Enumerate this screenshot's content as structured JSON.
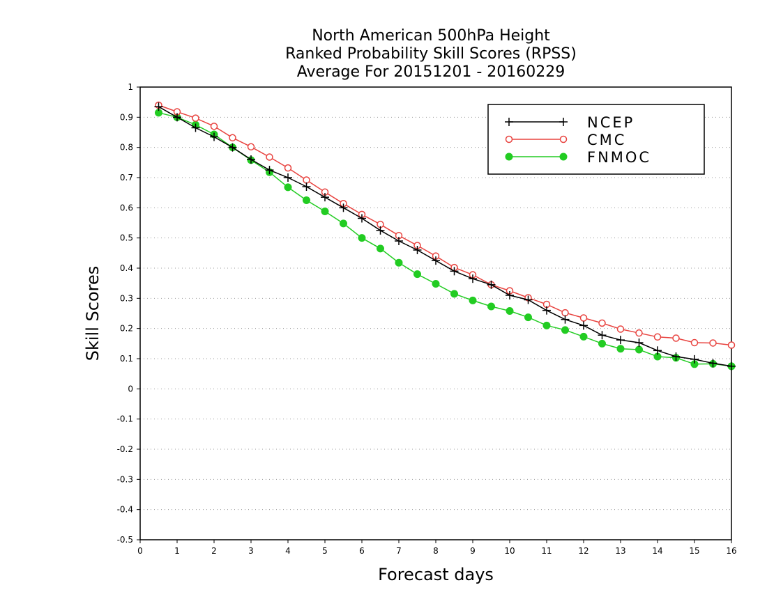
{
  "chart_data": {
    "type": "line",
    "title_lines": [
      "North American 500hPa Height",
      "Ranked Probability Skill Scores (RPSS)",
      "Average For 20151201 - 20160229"
    ],
    "xlabel": "Forecast days",
    "ylabel": "Skill Scores",
    "xlim": [
      0,
      16
    ],
    "ylim": [
      -0.5,
      1
    ],
    "xticks": [
      "0",
      "1",
      "2",
      "3",
      "4",
      "5",
      "6",
      "7",
      "8",
      "9",
      "10",
      "11",
      "12",
      "13",
      "14",
      "15",
      "16"
    ],
    "yticks": [
      "-0.5",
      "-0.4",
      "-0.3",
      "-0.2",
      "-0.1",
      "0",
      "0.1",
      "0.2",
      "0.3",
      "0.4",
      "0.5",
      "0.6",
      "0.7",
      "0.8",
      "0.9",
      "1"
    ],
    "grid": "horizontal dotted",
    "legend_position": "top-right",
    "x": [
      0.5,
      1,
      1.5,
      2,
      2.5,
      3,
      3.5,
      4,
      4.5,
      5,
      5.5,
      6,
      6.5,
      7,
      7.5,
      8,
      8.5,
      9,
      9.5,
      10,
      10.5,
      11,
      11.5,
      12,
      12.5,
      13,
      13.5,
      14,
      14.5,
      15,
      15.5,
      16
    ],
    "series": [
      {
        "name": "NCEP",
        "color": "#000000",
        "marker": "plus",
        "values": [
          0.935,
          0.9,
          0.865,
          0.835,
          0.8,
          0.76,
          0.725,
          0.7,
          0.67,
          0.635,
          0.6,
          0.565,
          0.525,
          0.49,
          0.46,
          0.425,
          0.39,
          0.365,
          0.345,
          0.31,
          0.295,
          0.26,
          0.23,
          0.21,
          0.178,
          0.162,
          0.153,
          0.127,
          0.107,
          0.098,
          0.085,
          0.075
        ]
      },
      {
        "name": "CMC",
        "color": "#e8433f",
        "marker": "open-circle",
        "values": [
          0.94,
          0.918,
          0.897,
          0.87,
          0.832,
          0.802,
          0.768,
          0.732,
          0.692,
          0.652,
          0.614,
          0.578,
          0.545,
          0.508,
          0.475,
          0.44,
          0.402,
          0.378,
          0.345,
          0.325,
          0.302,
          0.28,
          0.252,
          0.235,
          0.218,
          0.198,
          0.185,
          0.172,
          0.168,
          0.153,
          0.152,
          0.145
        ]
      },
      {
        "name": "FNMOC",
        "color": "#22cc22",
        "marker": "filled-circle",
        "values": [
          0.915,
          0.9,
          0.875,
          0.843,
          0.8,
          0.758,
          0.718,
          0.668,
          0.625,
          0.588,
          0.548,
          0.5,
          0.465,
          0.418,
          0.38,
          0.348,
          0.315,
          0.293,
          0.273,
          0.258,
          0.237,
          0.21,
          0.195,
          0.173,
          0.15,
          0.133,
          0.13,
          0.107,
          0.103,
          0.082,
          0.083,
          0.075
        ]
      }
    ]
  }
}
